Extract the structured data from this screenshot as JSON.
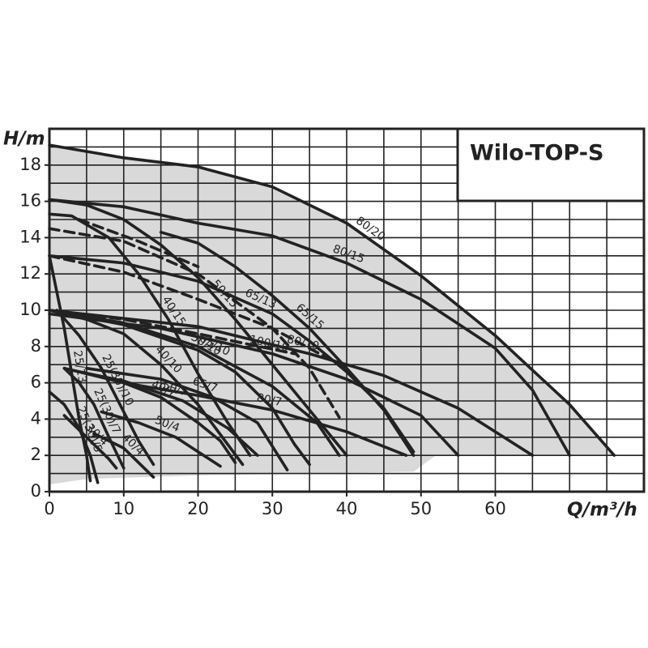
{
  "chart_data": {
    "type": "line",
    "title": "Wilo-TOP-S",
    "x_label": "Q/m³/h",
    "y_label": "H/m",
    "xlim": [
      0,
      80
    ],
    "ylim": [
      0,
      20
    ],
    "xticks": [
      0,
      10,
      20,
      30,
      40,
      50,
      60
    ],
    "yticks": [
      0,
      2,
      4,
      6,
      8,
      10,
      12,
      14,
      16,
      18
    ],
    "grid": true,
    "x_grid_step": 5,
    "y_grid_step": 1,
    "envelope": {
      "color": "#d9d9d9",
      "x": [
        0,
        10,
        20,
        30,
        40,
        50,
        60,
        70,
        76,
        52,
        49,
        20,
        5,
        0
      ],
      "values": [
        19.1,
        18.4,
        17.9,
        16.8,
        14.8,
        11.9,
        8.6,
        4.8,
        2,
        2,
        1.1,
        0.9,
        0.7,
        0.4
      ]
    },
    "series": [
      {
        "name": "80/20",
        "color": "#222222",
        "x": [
          0,
          10,
          20,
          30,
          40,
          50,
          60,
          70,
          76
        ],
        "values": [
          19.1,
          18.4,
          17.9,
          16.8,
          14.8,
          11.9,
          8.6,
          4.8,
          2
        ]
      },
      {
        "name": "80/15",
        "color": "#222222",
        "x": [
          0,
          10,
          20,
          30,
          40,
          50,
          60,
          65,
          70
        ],
        "values": [
          16.1,
          15.7,
          14.8,
          14.1,
          12.6,
          10.6,
          7.9,
          5.6,
          2
        ]
      },
      {
        "name": "50/15",
        "color": "#222222",
        "x": [
          0,
          5,
          10,
          15,
          20,
          25,
          30,
          35,
          40
        ],
        "values": [
          16.1,
          15.8,
          15.0,
          13.6,
          11.8,
          9.5,
          7.0,
          4.5,
          2
        ]
      },
      {
        "name": "40/15",
        "color": "#222222",
        "x": [
          0,
          3,
          8,
          12,
          16,
          20,
          24,
          27
        ],
        "values": [
          15.3,
          15.2,
          14.0,
          12.0,
          9.5,
          6.5,
          3.8,
          2
        ]
      },
      {
        "name": "65/15",
        "color": "#222222",
        "x": [
          15,
          20,
          25,
          30,
          35,
          40,
          45,
          49
        ],
        "values": [
          14.3,
          13.7,
          12.4,
          10.8,
          9.0,
          6.8,
          4.5,
          2
        ]
      },
      {
        "name": "65/13",
        "color": "#222222",
        "x": [
          0,
          10,
          20,
          30,
          35,
          40,
          45,
          49
        ],
        "values": [
          13,
          12.6,
          11.6,
          9.8,
          8.3,
          6.6,
          4.6,
          2.2
        ]
      },
      {
        "name": "80/10",
        "color": "#222222",
        "x": [
          0,
          20,
          35,
          45,
          55,
          65
        ],
        "values": [
          10,
          9.1,
          7.6,
          6.4,
          4.6,
          2
        ]
      },
      {
        "name": "100/10",
        "color": "#222222",
        "x": [
          0,
          15,
          30,
          40,
          50,
          55
        ],
        "values": [
          9.8,
          9.0,
          7.6,
          6.2,
          4.2,
          2
        ]
      },
      {
        "name": "40/10",
        "color": "#222222",
        "x": [
          0,
          5,
          10,
          15,
          20,
          24,
          26
        ],
        "values": [
          10,
          9.5,
          8.7,
          7.0,
          4.8,
          2.6,
          1.5
        ]
      },
      {
        "name": "50/10",
        "color": "#222222",
        "x": [
          0,
          10,
          20,
          25,
          30,
          33,
          35
        ],
        "values": [
          10,
          9.2,
          7.8,
          6.6,
          4.6,
          2.6,
          1.5
        ]
      },
      {
        "name": "65/10",
        "color": "#222222",
        "x": [
          0,
          10,
          20,
          30,
          36,
          39
        ],
        "values": [
          10,
          9.3,
          8.0,
          5.8,
          3.8,
          2
        ]
      },
      {
        "name": "25(30)/10",
        "color": "#222222",
        "x": [
          1,
          4,
          7,
          10,
          12,
          14
        ],
        "values": [
          10,
          8.6,
          6.8,
          4.4,
          2.8,
          1.5
        ]
      },
      {
        "name": "25/13",
        "color": "#222222",
        "x": [
          0,
          1,
          2,
          3,
          4,
          5,
          5.5
        ],
        "values": [
          13,
          11,
          9,
          6.5,
          4,
          2,
          0.6
        ]
      },
      {
        "name": "25(30)/7",
        "color": "#222222",
        "x": [
          2,
          4,
          6,
          8,
          10
        ],
        "values": [
          6.8,
          6.0,
          4.8,
          3.0,
          1.3
        ]
      },
      {
        "name": "40/7",
        "color": "#222222",
        "x": [
          2,
          10,
          15,
          20,
          23,
          25
        ],
        "values": [
          6.8,
          6.0,
          5.2,
          3.8,
          2.8,
          1.6
        ]
      },
      {
        "name": "65/7",
        "color": "#222222",
        "x": [
          5,
          15,
          22,
          28,
          32
        ],
        "values": [
          6.8,
          6.2,
          5.2,
          3.8,
          1.2
        ]
      },
      {
        "name": "50/7",
        "color": "#222222",
        "x": [
          3,
          10,
          18,
          24,
          28
        ],
        "values": [
          6.7,
          6.1,
          5.0,
          3.5,
          2
        ]
      },
      {
        "name": "80/7",
        "color": "#222222",
        "x": [
          10,
          20,
          30,
          40,
          48
        ],
        "values": [
          6.0,
          5.3,
          4.5,
          3.3,
          2
        ]
      },
      {
        "name": "25(30)/5",
        "color": "#222222",
        "x": [
          0,
          2,
          4,
          5.5,
          6.5
        ],
        "values": [
          5.5,
          4.8,
          3.5,
          2,
          0.5
        ]
      },
      {
        "name": "30/4",
        "color": "#222222",
        "x": [
          2,
          4,
          6,
          8,
          9
        ],
        "values": [
          4.2,
          3.4,
          2.6,
          1.8,
          1.3
        ]
      },
      {
        "name": "40/4",
        "color": "#222222",
        "x": [
          6,
          8,
          10,
          12,
          14
        ],
        "values": [
          3.2,
          2.8,
          2.4,
          1.6,
          0.8
        ]
      },
      {
        "name": "50/4",
        "color": "#222222",
        "x": [
          7,
          12,
          17,
          20,
          23
        ],
        "values": [
          4.4,
          3.8,
          3.0,
          2.2,
          1.4
        ]
      },
      {
        "color": "#222222",
        "dashed": true,
        "x": [
          0,
          10,
          20,
          30,
          35,
          39
        ],
        "values": [
          14.5,
          13.8,
          12.0,
          9.0,
          6.8,
          4.1
        ]
      },
      {
        "color": "#222222",
        "dashed": true,
        "x": [
          0,
          10,
          20,
          30,
          40
        ],
        "values": [
          13.0,
          12.1,
          10.6,
          9.0,
          6.8
        ]
      },
      {
        "color": "#222222",
        "dashed": true,
        "x": [
          0,
          10,
          20,
          33
        ],
        "values": [
          10,
          9.5,
          8.7,
          7.6
        ]
      },
      {
        "color": "#222222",
        "dashed": true,
        "x": [
          4,
          12,
          20
        ],
        "values": [
          15.0,
          13.8,
          12.4
        ]
      }
    ]
  }
}
